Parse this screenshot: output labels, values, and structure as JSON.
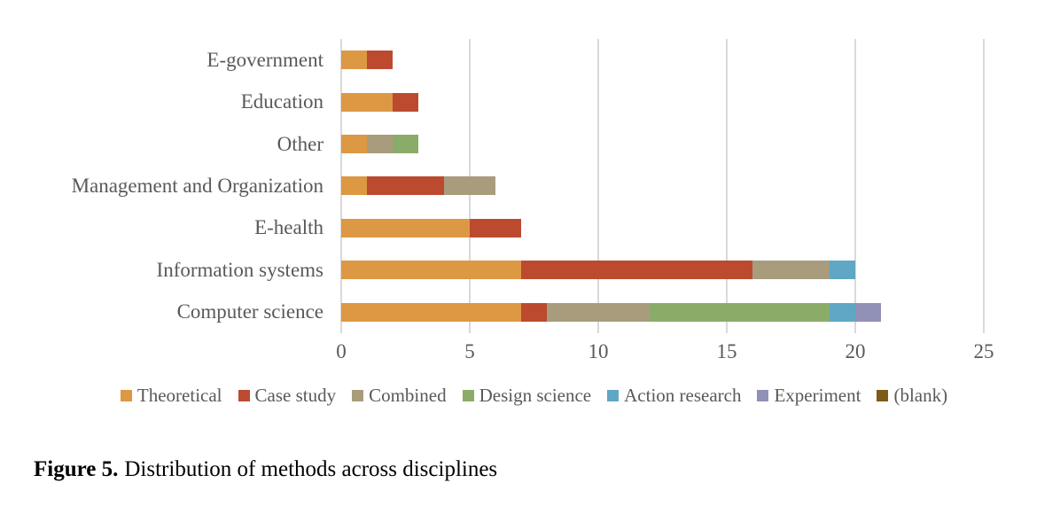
{
  "figure": {
    "caption_label": "Figure 5.",
    "caption_text": "Distribution of methods across disciplines"
  },
  "chart_data": {
    "type": "bar",
    "orientation": "horizontal",
    "stacked": true,
    "title": "",
    "xlabel": "",
    "ylabel": "",
    "categories": [
      "E-government",
      "Education",
      "Other",
      "Management and Organization",
      "E-health",
      "Information systems",
      "Computer science"
    ],
    "series": [
      {
        "name": "Theoretical",
        "color": "#DD9843",
        "values": [
          1,
          2,
          1,
          1,
          5,
          7,
          7
        ]
      },
      {
        "name": "Case study",
        "color": "#BC4A2F",
        "values": [
          1,
          1,
          0,
          3,
          2,
          9,
          1
        ]
      },
      {
        "name": "Combined",
        "color": "#A89C7D",
        "values": [
          0,
          0,
          1,
          2,
          0,
          3,
          4
        ]
      },
      {
        "name": "Design science",
        "color": "#8BAC68",
        "values": [
          0,
          0,
          1,
          0,
          0,
          0,
          7
        ]
      },
      {
        "name": "Action research",
        "color": "#5FA7C4",
        "values": [
          0,
          0,
          0,
          0,
          0,
          1,
          1
        ]
      },
      {
        "name": "Experiment",
        "color": "#9190B7",
        "values": [
          0,
          0,
          0,
          0,
          0,
          0,
          1
        ]
      },
      {
        "name": "(blank)",
        "color": "#7D5A17",
        "values": [
          0,
          0,
          0,
          0,
          0,
          0,
          0
        ]
      }
    ],
    "category_totals": [
      2,
      3,
      3,
      6,
      7,
      20,
      21
    ],
    "xlim": [
      0,
      25
    ],
    "x_ticks": [
      0,
      5,
      10,
      15,
      20,
      25
    ],
    "grid": "vertical",
    "legend_position": "bottom"
  },
  "colors": {
    "background": "#FFFFFF",
    "gridline": "#D9D9D9",
    "axis_text": "#595959",
    "caption_text": "#000000"
  }
}
